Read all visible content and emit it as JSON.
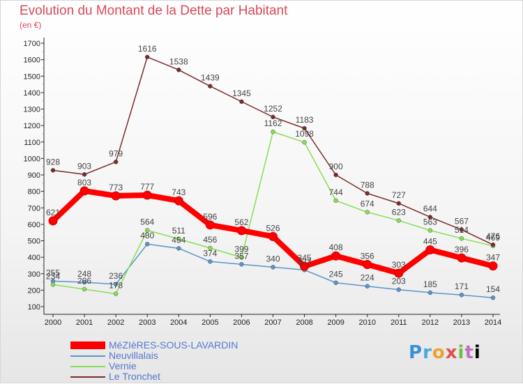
{
  "chart_data": {
    "type": "line",
    "title": "Evolution du Montant de la Dette par Habitant",
    "unit": "(en €)",
    "x": [
      "2000",
      "2001",
      "2002",
      "2003",
      "2004",
      "2005",
      "2006",
      "2007",
      "2008",
      "2009",
      "2010",
      "2011",
      "2012",
      "2013",
      "2014"
    ],
    "ylim": [
      100,
      1700
    ],
    "yticks": [
      100,
      200,
      300,
      400,
      500,
      600,
      700,
      800,
      900,
      1000,
      1100,
      1200,
      1300,
      1400,
      1500,
      1600,
      1700
    ],
    "grid": false,
    "legend_position": "bottom-left",
    "series": [
      {
        "name": "MéZIèRES-SOUS-LAVARDIN",
        "color": "#ff0000",
        "width": 8,
        "values": [
          621,
          803,
          773,
          777,
          743,
          596,
          562,
          526,
          345,
          408,
          356,
          303,
          445,
          396,
          347
        ]
      },
      {
        "name": "Neuvillalais",
        "color": "#5b94c8",
        "width": 1.5,
        "values": [
          255,
          248,
          236,
          480,
          454,
          374,
          357,
          340,
          323,
          245,
          224,
          203,
          185,
          171,
          154
        ]
      },
      {
        "name": "Vernie",
        "color": "#88dd55",
        "width": 1.5,
        "values": [
          234,
          206,
          178,
          564,
          511,
          456,
          399,
          1162,
          1098,
          744,
          674,
          623,
          563,
          514,
          469
        ]
      },
      {
        "name": "Le Tronchet",
        "color": "#7a2a2a",
        "width": 1.5,
        "values": [
          928,
          903,
          979,
          1616,
          1538,
          1439,
          1345,
          1252,
          1183,
          900,
          788,
          727,
          644,
          567,
          476
        ]
      }
    ]
  },
  "logo": {
    "letters": [
      "P",
      "r",
      "o",
      "x",
      "i",
      "t",
      "i"
    ]
  }
}
